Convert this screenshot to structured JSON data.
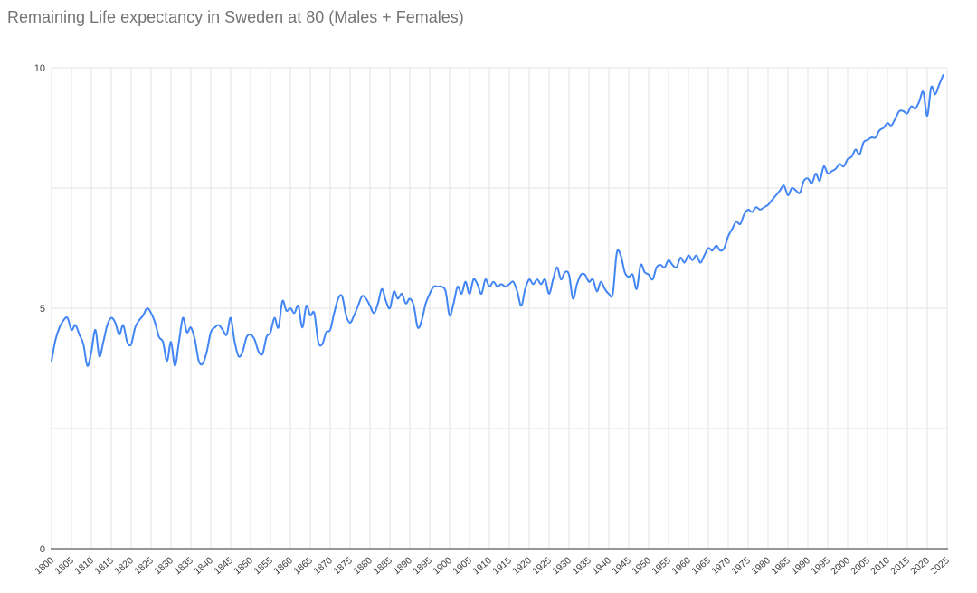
{
  "chart_data": {
    "type": "line",
    "title": "Remaining Life expectancy in Sweden at 80 (Males + Females)",
    "xlabel": "",
    "ylabel": "",
    "xlim": [
      1800,
      2025
    ],
    "ylim": [
      0,
      10
    ],
    "grid": "on",
    "legend": "none",
    "x_start": 1800,
    "x_step": 1,
    "values": [
      3.9,
      4.35,
      4.6,
      4.75,
      4.8,
      4.55,
      4.65,
      4.45,
      4.25,
      3.8,
      4.1,
      4.55,
      4.0,
      4.3,
      4.65,
      4.8,
      4.7,
      4.45,
      4.65,
      4.3,
      4.25,
      4.6,
      4.75,
      4.85,
      5.0,
      4.9,
      4.7,
      4.4,
      4.3,
      3.9,
      4.3,
      3.8,
      4.3,
      4.8,
      4.5,
      4.6,
      4.35,
      3.9,
      3.85,
      4.1,
      4.5,
      4.6,
      4.65,
      4.55,
      4.45,
      4.8,
      4.3,
      4.0,
      4.1,
      4.4,
      4.45,
      4.35,
      4.1,
      4.05,
      4.4,
      4.5,
      4.8,
      4.6,
      5.15,
      4.95,
      5.0,
      4.9,
      5.05,
      4.6,
      5.05,
      4.85,
      4.9,
      4.3,
      4.25,
      4.5,
      4.55,
      4.9,
      5.2,
      5.25,
      4.85,
      4.7,
      4.85,
      5.05,
      5.25,
      5.2,
      5.05,
      4.9,
      5.1,
      5.4,
      5.15,
      5.0,
      5.35,
      5.2,
      5.3,
      5.1,
      5.2,
      5.05,
      4.6,
      4.75,
      5.1,
      5.3,
      5.45,
      5.45,
      5.45,
      5.35,
      4.85,
      5.1,
      5.45,
      5.3,
      5.55,
      5.3,
      5.6,
      5.5,
      5.3,
      5.6,
      5.45,
      5.55,
      5.45,
      5.5,
      5.45,
      5.5,
      5.55,
      5.35,
      5.05,
      5.4,
      5.6,
      5.5,
      5.6,
      5.5,
      5.6,
      5.3,
      5.6,
      5.85,
      5.6,
      5.75,
      5.7,
      5.2,
      5.5,
      5.7,
      5.7,
      5.55,
      5.6,
      5.35,
      5.55,
      5.4,
      5.3,
      5.3,
      6.15,
      6.1,
      5.75,
      5.65,
      5.7,
      5.4,
      5.9,
      5.75,
      5.7,
      5.6,
      5.85,
      5.9,
      5.85,
      6.0,
      5.9,
      5.85,
      6.05,
      5.95,
      6.1,
      6.0,
      6.1,
      5.95,
      6.1,
      6.25,
      6.2,
      6.3,
      6.2,
      6.25,
      6.5,
      6.65,
      6.8,
      6.75,
      6.95,
      7.05,
      7.0,
      7.1,
      7.05,
      7.1,
      7.15,
      7.25,
      7.35,
      7.45,
      7.55,
      7.35,
      7.5,
      7.45,
      7.4,
      7.65,
      7.7,
      7.6,
      7.8,
      7.65,
      7.95,
      7.8,
      7.85,
      7.9,
      8.0,
      7.95,
      8.1,
      8.15,
      8.3,
      8.2,
      8.45,
      8.5,
      8.55,
      8.55,
      8.7,
      8.75,
      8.85,
      8.8,
      8.95,
      9.1,
      9.1,
      9.05,
      9.2,
      9.15,
      9.3,
      9.5,
      9.0,
      9.6,
      9.45,
      9.65,
      9.85
    ],
    "x_tick_labels": [
      "1800",
      "1805",
      "1810",
      "1815",
      "1820",
      "1825",
      "1830",
      "1835",
      "1840",
      "1845",
      "1850",
      "1855",
      "1860",
      "1865",
      "1870",
      "1875",
      "1880",
      "1885",
      "1890",
      "1895",
      "1900",
      "1905",
      "1910",
      "1915",
      "1920",
      "1925",
      "1930",
      "1935",
      "1940",
      "1945",
      "1950",
      "1955",
      "1960",
      "1965",
      "1970",
      "1975",
      "1980",
      "1985",
      "1990",
      "1995",
      "2000",
      "2005",
      "2010",
      "2015",
      "2020",
      "2025"
    ],
    "y_tick_labels": [
      "0",
      "5",
      "10"
    ],
    "y_tick_values": [
      0,
      5,
      10
    ],
    "y_gridline_values": [
      0,
      2.5,
      5,
      7.5,
      10
    ],
    "colors": {
      "line": "#4285f4",
      "title": "#757575",
      "gridline": "#e3e3e3",
      "axis_line": "#757575",
      "tick_label": "#3c3c3c"
    }
  }
}
